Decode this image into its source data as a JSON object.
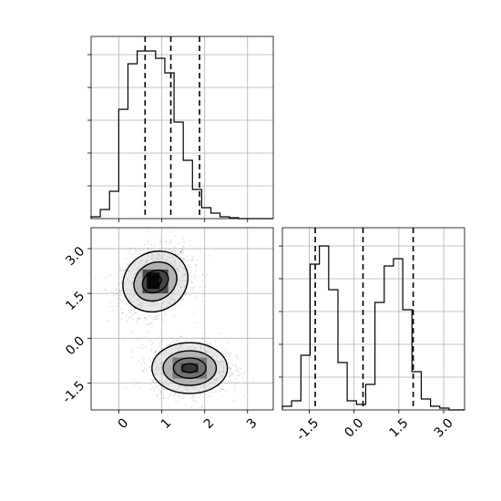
{
  "chart_data": {
    "type": "corner",
    "grid": true,
    "panels": [
      {
        "id": "hist-x",
        "type": "histogram",
        "x_range": [
          -0.65,
          3.6
        ],
        "bin_edges": [
          -0.65,
          -0.435,
          -0.22,
          -0.005,
          0.21,
          0.425,
          0.64,
          0.855,
          1.07,
          1.285,
          1.5,
          1.715,
          1.93,
          2.145,
          2.36,
          2.575,
          2.79,
          3.005,
          3.22,
          3.435,
          3.6
        ],
        "counts": [
          0.01,
          0.05,
          0.15,
          0.6,
          0.85,
          0.92,
          0.92,
          0.88,
          0.8,
          0.53,
          0.32,
          0.16,
          0.06,
          0.03,
          0.01,
          0.005,
          0,
          0,
          0,
          0
        ],
        "ylim": [
          0,
          1.0
        ],
        "quantile_lines": [
          0.61,
          1.21,
          1.88
        ]
      },
      {
        "id": "hist-y",
        "type": "histogram",
        "x_range": [
          -2.4,
          3.7
        ],
        "x_ticks": [
          "-1.5",
          "0.0",
          "1.5",
          "3.0"
        ],
        "x_tick_values": [
          -1.5,
          0.0,
          1.5,
          3.0
        ],
        "bin_edges": [
          -2.4,
          -2.09,
          -1.78,
          -1.47,
          -1.16,
          -0.85,
          -0.54,
          -0.23,
          0.08,
          0.39,
          0.7,
          1.01,
          1.32,
          1.63,
          1.94,
          2.25,
          2.56,
          2.87,
          3.18,
          3.49,
          3.7
        ],
        "counts": [
          0.02,
          0.05,
          0.3,
          0.8,
          0.9,
          0.66,
          0.26,
          0.05,
          0.03,
          0.14,
          0.59,
          0.79,
          0.83,
          0.55,
          0.21,
          0.06,
          0.02,
          0.01,
          0,
          0
        ],
        "ylim": [
          0,
          1.0
        ],
        "quantile_lines": [
          -1.3,
          0.3,
          1.98
        ]
      },
      {
        "id": "scatter-2d",
        "type": "scatter-contour",
        "x_range": [
          -0.65,
          3.6
        ],
        "y_range": [
          -2.4,
          3.7
        ],
        "x_ticks": [
          "0",
          "1",
          "2",
          "3"
        ],
        "x_tick_values": [
          0,
          1,
          2,
          3
        ],
        "y_ticks": [
          "3.0",
          "1.5",
          "0.0",
          "-1.5"
        ],
        "y_tick_values": [
          3.0,
          1.5,
          0.0,
          -1.5
        ],
        "clusters": [
          {
            "center": [
              0.85,
              1.9
            ],
            "spread": [
              0.4,
              0.62
            ],
            "contour_radii": [
              [
                0.15,
                0.15
              ],
              [
                0.32,
                0.35
              ],
              [
                0.52,
                0.62
              ],
              [
                0.78,
                0.98
              ]
            ]
          },
          {
            "center": [
              1.65,
              -1.0
            ],
            "spread": [
              0.45,
              0.5
            ],
            "contour_radii": [
              [
                0.18,
                0.15
              ],
              [
                0.38,
                0.34
              ],
              [
                0.62,
                0.58
              ],
              [
                0.88,
                0.85
              ]
            ]
          }
        ],
        "density_squares": [
          {
            "x": 0.65,
            "y": 1.65,
            "w": 0.3,
            "h": 0.55,
            "color": "#000000"
          },
          {
            "x": 0.55,
            "y": 1.5,
            "w": 0.6,
            "h": 0.8,
            "color": "#3a3a3a"
          },
          {
            "x": 1.45,
            "y": -1.15,
            "w": 0.4,
            "h": 0.3,
            "color": "#2b2b2b"
          },
          {
            "x": 1.25,
            "y": -1.35,
            "w": 0.8,
            "h": 0.7,
            "color": "#6e6e6e"
          }
        ]
      }
    ]
  }
}
